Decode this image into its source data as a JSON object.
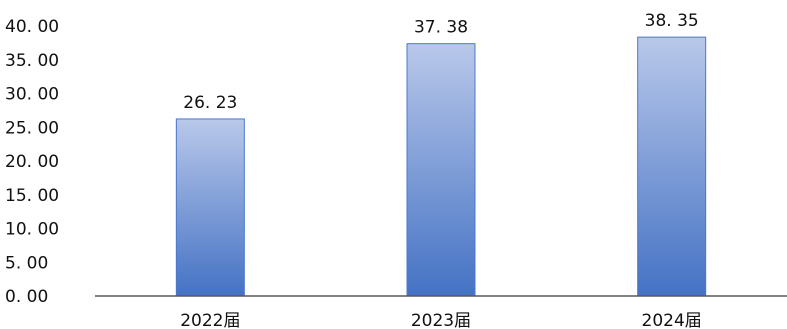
{
  "chart_data": {
    "type": "bar",
    "title": "",
    "xlabel": "",
    "ylabel": "",
    "categories": [
      "2022届",
      "2023届",
      "2024届"
    ],
    "values": [
      26.23,
      37.38,
      38.35
    ],
    "value_labels": [
      "26. 23",
      "37. 38",
      "38. 35"
    ],
    "yticks": [
      0,
      5,
      10,
      15,
      20,
      25,
      30,
      35,
      40
    ],
    "ytick_labels": [
      "0. 00",
      "5. 00",
      "10. 00",
      "15. 00",
      "20. 00",
      "25. 00",
      "30. 00",
      "35. 00",
      "40. 00"
    ],
    "ylim": [
      0,
      40
    ],
    "grid": false,
    "legend": "none",
    "colors": {
      "bar_top": "#b9c8ea",
      "bar_bottom": "#4472c4",
      "bar_edge": "#4a78cc",
      "axis": "#595959",
      "text": "#111111"
    }
  }
}
